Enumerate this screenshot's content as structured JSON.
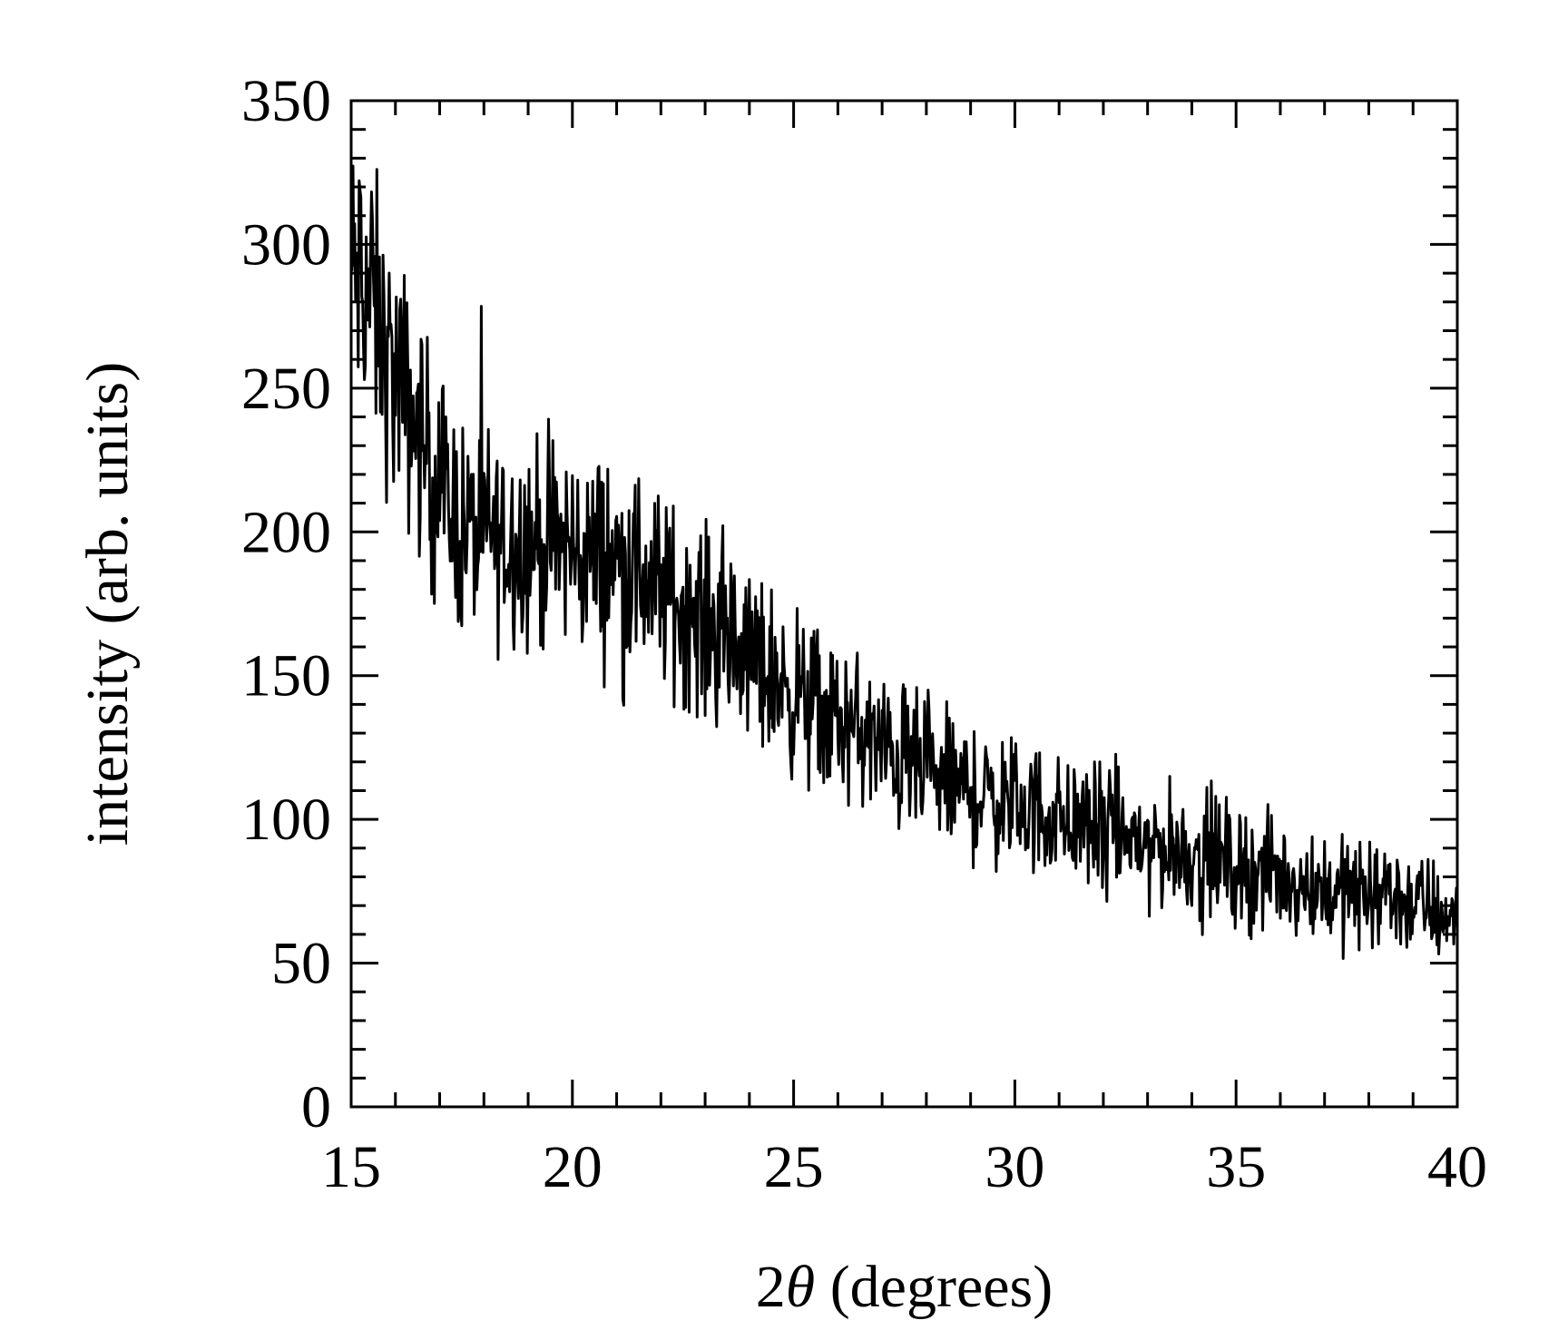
{
  "chart_data": {
    "type": "line",
    "title": "",
    "xlabel_prefix": "2",
    "xlabel_symbol": "θ",
    "xlabel_suffix": " (degrees)",
    "ylabel": "intensity (arb. units)",
    "xlim": [
      15,
      40
    ],
    "ylim": [
      0,
      350
    ],
    "x_ticks": [
      15,
      20,
      25,
      30,
      35,
      40
    ],
    "y_ticks": [
      0,
      50,
      100,
      150,
      200,
      250,
      300,
      350
    ],
    "x_minor_step": 1,
    "y_minor_step": 10,
    "grid": false,
    "line_color": "#000000",
    "series": [
      {
        "x": [
          15.0,
          15.25,
          15.5,
          15.75,
          16.0,
          16.25,
          16.5,
          16.75,
          17.0,
          17.25,
          17.5,
          17.75,
          18.0,
          18.25,
          18.5,
          18.75,
          19.0,
          19.25,
          19.5,
          19.75,
          20.0,
          20.25,
          20.5,
          20.75,
          21.0,
          21.25,
          21.5,
          21.75,
          22.0,
          22.25,
          22.5,
          22.75,
          23.0,
          23.25,
          23.5,
          23.75,
          24.0,
          24.25,
          24.5,
          24.75,
          25.0,
          25.25,
          25.5,
          25.75,
          26.0,
          26.25,
          26.5,
          26.75,
          27.0,
          27.25,
          27.5,
          27.75,
          28.0,
          28.25,
          28.5,
          28.75,
          29.0,
          29.25,
          29.5,
          29.75,
          30.0,
          30.25,
          30.5,
          30.75,
          31.0,
          31.25,
          31.5,
          31.75,
          32.0,
          32.25,
          32.5,
          32.75,
          33.0,
          33.25,
          33.5,
          33.75,
          34.0,
          34.25,
          34.5,
          34.75,
          35.0,
          35.25,
          35.5,
          35.75,
          36.0,
          36.25,
          36.5,
          36.75,
          37.0,
          37.25,
          37.5,
          37.75,
          38.0,
          38.25,
          38.5,
          38.75,
          39.0,
          39.25,
          39.5,
          39.75,
          40.0
        ],
        "y": [
          290,
          288,
          280,
          262,
          253,
          245,
          235,
          225,
          215,
          208,
          202,
          200,
          200,
          199,
          198,
          198,
          197,
          196,
          195,
          195,
          194,
          193,
          192,
          191,
          190,
          188,
          186,
          183,
          180,
          177,
          174,
          171,
          168,
          165,
          162,
          159,
          156,
          153,
          150,
          147,
          144,
          141,
          138,
          136,
          134,
          132,
          130,
          127,
          124,
          122,
          120,
          118,
          116,
          114,
          112,
          111,
          110,
          108,
          107,
          106,
          105,
          104,
          103,
          102,
          100,
          99,
          98,
          97,
          96,
          95,
          94,
          93,
          92,
          91,
          90,
          89,
          88,
          87,
          86,
          85,
          84,
          83,
          82,
          81,
          80,
          79,
          78,
          77,
          76,
          75,
          75,
          74,
          74,
          73,
          73,
          72,
          71,
          70,
          68,
          67,
          66
        ]
      }
    ]
  }
}
